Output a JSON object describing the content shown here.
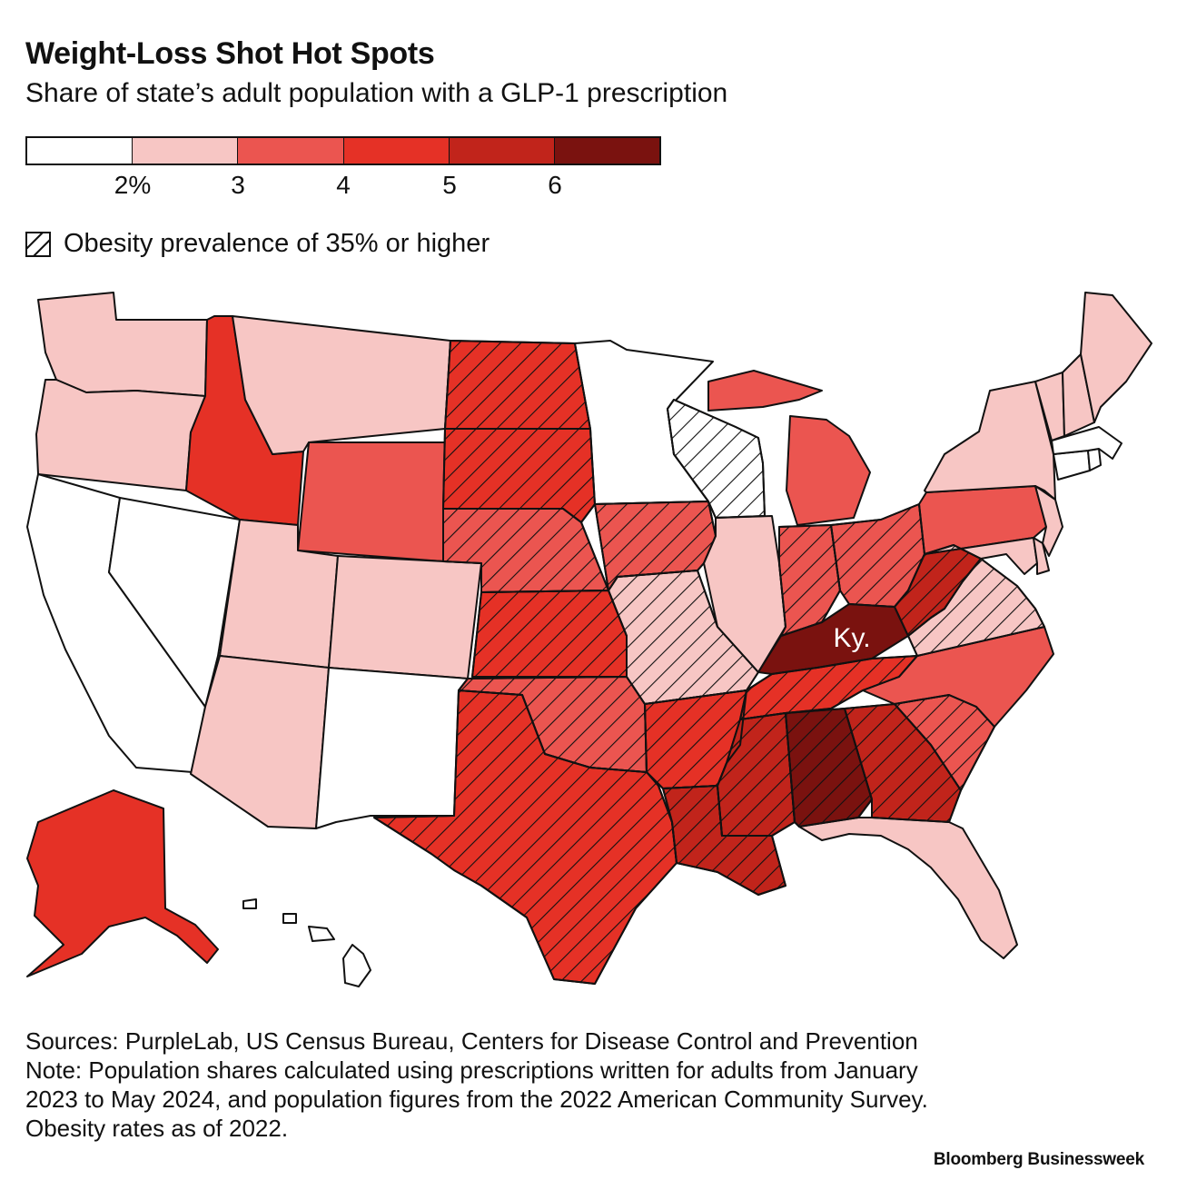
{
  "header": {
    "title": "Weight-Loss Shot Hot Spots",
    "subtitle": "Share of state’s adult population with a GLP-1 prescription"
  },
  "legend": {
    "colors": [
      "#ffffff",
      "#f7c6c4",
      "#eb5550",
      "#e53126",
      "#c1241b",
      "#7a120f"
    ],
    "ticks": [
      "2%",
      "3",
      "4",
      "5",
      "6"
    ],
    "hatch_label": "Obesity prevalence of 35% or higher"
  },
  "map": {
    "highlight_label": "Ky.",
    "states": [
      {
        "name": "Washington",
        "bin": 1,
        "hatch": false
      },
      {
        "name": "Oregon",
        "bin": 1,
        "hatch": false
      },
      {
        "name": "California",
        "bin": 0,
        "hatch": false
      },
      {
        "name": "Nevada",
        "bin": 0,
        "hatch": false
      },
      {
        "name": "Idaho",
        "bin": 3,
        "hatch": false
      },
      {
        "name": "Montana",
        "bin": 1,
        "hatch": false
      },
      {
        "name": "Wyoming",
        "bin": 2,
        "hatch": false
      },
      {
        "name": "Utah",
        "bin": 1,
        "hatch": false
      },
      {
        "name": "Arizona",
        "bin": 1,
        "hatch": false
      },
      {
        "name": "Colorado",
        "bin": 1,
        "hatch": false
      },
      {
        "name": "New Mexico",
        "bin": 0,
        "hatch": false
      },
      {
        "name": "North Dakota",
        "bin": 3,
        "hatch": true
      },
      {
        "name": "South Dakota",
        "bin": 3,
        "hatch": true
      },
      {
        "name": "Nebraska",
        "bin": 2,
        "hatch": true
      },
      {
        "name": "Kansas",
        "bin": 3,
        "hatch": true
      },
      {
        "name": "Oklahoma",
        "bin": 2,
        "hatch": true
      },
      {
        "name": "Texas",
        "bin": 3,
        "hatch": true
      },
      {
        "name": "Minnesota",
        "bin": 0,
        "hatch": false
      },
      {
        "name": "Iowa",
        "bin": 2,
        "hatch": true
      },
      {
        "name": "Missouri",
        "bin": 1,
        "hatch": true
      },
      {
        "name": "Arkansas",
        "bin": 3,
        "hatch": true
      },
      {
        "name": "Louisiana",
        "bin": 4,
        "hatch": true
      },
      {
        "name": "Wisconsin",
        "bin": 0,
        "hatch": true
      },
      {
        "name": "Illinois",
        "bin": 1,
        "hatch": false
      },
      {
        "name": "Michigan",
        "bin": 2,
        "hatch": false
      },
      {
        "name": "Indiana",
        "bin": 2,
        "hatch": true
      },
      {
        "name": "Ohio",
        "bin": 2,
        "hatch": true
      },
      {
        "name": "Kentucky",
        "bin": 5,
        "hatch": false
      },
      {
        "name": "Tennessee",
        "bin": 3,
        "hatch": true
      },
      {
        "name": "Mississippi",
        "bin": 4,
        "hatch": true
      },
      {
        "name": "Alabama",
        "bin": 5,
        "hatch": true
      },
      {
        "name": "Georgia",
        "bin": 4,
        "hatch": true
      },
      {
        "name": "Florida",
        "bin": 1,
        "hatch": false
      },
      {
        "name": "South Carolina",
        "bin": 2,
        "hatch": true
      },
      {
        "name": "North Carolina",
        "bin": 2,
        "hatch": false
      },
      {
        "name": "Virginia",
        "bin": 1,
        "hatch": true
      },
      {
        "name": "West Virginia",
        "bin": 4,
        "hatch": true
      },
      {
        "name": "Pennsylvania",
        "bin": 2,
        "hatch": false
      },
      {
        "name": "New York",
        "bin": 1,
        "hatch": false
      },
      {
        "name": "Maryland",
        "bin": 1,
        "hatch": false
      },
      {
        "name": "Delaware",
        "bin": 1,
        "hatch": false
      },
      {
        "name": "New Jersey",
        "bin": 1,
        "hatch": false
      },
      {
        "name": "Connecticut",
        "bin": 0,
        "hatch": false
      },
      {
        "name": "Rhode Island",
        "bin": 0,
        "hatch": false
      },
      {
        "name": "Massachusetts",
        "bin": 0,
        "hatch": false
      },
      {
        "name": "Vermont",
        "bin": 1,
        "hatch": false
      },
      {
        "name": "New Hampshire",
        "bin": 1,
        "hatch": false
      },
      {
        "name": "Maine",
        "bin": 1,
        "hatch": false
      },
      {
        "name": "Alaska",
        "bin": 3,
        "hatch": false
      },
      {
        "name": "Hawaii",
        "bin": 0,
        "hatch": false
      }
    ]
  },
  "footer": {
    "sources": "Sources: PurpleLab, US Census Bureau, Centers for Disease Control and Prevention",
    "note": "Note: Population shares calculated using prescriptions written for adults from January 2023 to May 2024, and population figures from the 2022 American Community Survey. Obesity rates as of 2022.",
    "brand": "Bloomberg Businessweek"
  }
}
